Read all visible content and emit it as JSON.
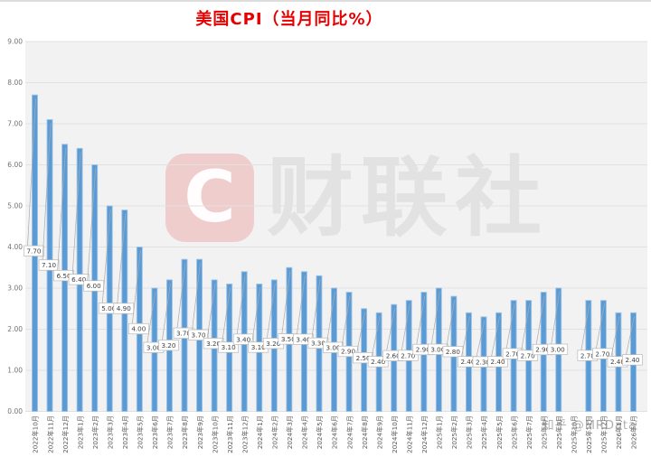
{
  "chart": {
    "title": "美国CPI（当月同比%）",
    "title_color": "#e60000",
    "plot_bg_color": "#f2f2f2",
    "gridline_color": "#e1e1e1",
    "bar_color": "#5b9bd5",
    "bar_edge_color": "#9ec3e6",
    "label_box_border": "#b9b9b9",
    "y_axis_ticks": [
      "9.00",
      "8.00",
      "7.00",
      "6.00",
      "5.00",
      "4.00",
      "3.00",
      "2.00",
      "1.00",
      "0.00"
    ]
  },
  "chart_data": {
    "type": "bar",
    "title": "美国CPI（当月同比%）",
    "xlabel": "",
    "ylabel": "",
    "ylim": [
      0,
      9
    ],
    "ytick_step": 1,
    "grid": true,
    "legend": "none",
    "data_labels": "two-decimal callout boxes at mid-bar",
    "categories": [
      "2022年10月",
      "2022年11月",
      "2022年12月",
      "2023年1月",
      "2023年2月",
      "2023年3月",
      "2023年4月",
      "2023年5月",
      "2023年6月",
      "2023年7月",
      "2023年8月",
      "2023年9月",
      "2023年10月",
      "2023年11月",
      "2023年12月",
      "2024年1月",
      "2024年2月",
      "2024年3月",
      "2024年4月",
      "2024年5月",
      "2024年6月",
      "2024年7月",
      "2024年8月",
      "2024年9月",
      "2024年10月",
      "2024年11月",
      "2024年12月",
      "2025年1月",
      "2025年2月",
      "2025年3月",
      "2025年4月",
      "2025年5月",
      "2025年6月",
      "2025年7月",
      "2025年8月",
      "2025年9月",
      "2025年10月",
      "2025年11月",
      "2025年12月",
      "2026年1月",
      "2026年2月"
    ],
    "values": [
      7.7,
      7.1,
      6.5,
      6.4,
      6.0,
      5.0,
      4.9,
      4.0,
      3.0,
      3.2,
      3.7,
      3.7,
      3.2,
      3.1,
      3.4,
      3.1,
      3.2,
      3.5,
      3.4,
      3.3,
      3.0,
      2.9,
      2.5,
      2.4,
      2.6,
      2.7,
      2.9,
      3.0,
      2.8,
      2.4,
      2.3,
      2.4,
      2.7,
      2.7,
      2.9,
      3.0,
      null,
      2.7,
      2.7,
      2.4,
      2.4
    ]
  },
  "watermarks": {
    "center_logo_letter": "C",
    "center_text": "财联社",
    "corner_text": "知乎 @MRData"
  }
}
